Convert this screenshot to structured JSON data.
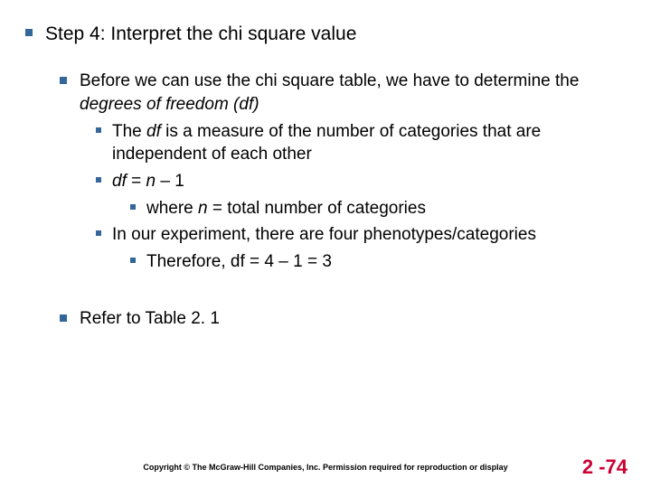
{
  "colors": {
    "bullet": "#336699",
    "text": "#000000",
    "pagenum": "#cc0033",
    "bg": "#ffffff"
  },
  "slide": {
    "title": "Step 4: Interpret the chi square value",
    "p1_a": "Before we can use the chi square table, we have to determine the ",
    "p1_b": "degrees of freedom (df)",
    "p2_a": "The ",
    "p2_b": "df",
    "p2_c": "  is a measure of the number of categories that are independent of each other",
    "p3_a": "df",
    "p3_b": " = ",
    "p3_c": "n",
    "p3_d": " – 1",
    "p4_a": "where ",
    "p4_b": "n",
    "p4_c": " = total number of categories",
    "p5": "In our experiment, there are four phenotypes/categories",
    "p6": "Therefore, df = 4 – 1 = 3",
    "p7": "Refer to Table 2. 1",
    "copyright": "Copyright © The McGraw-Hill Companies, Inc. Permission required for reproduction or display",
    "pagenum": "2 -74"
  }
}
